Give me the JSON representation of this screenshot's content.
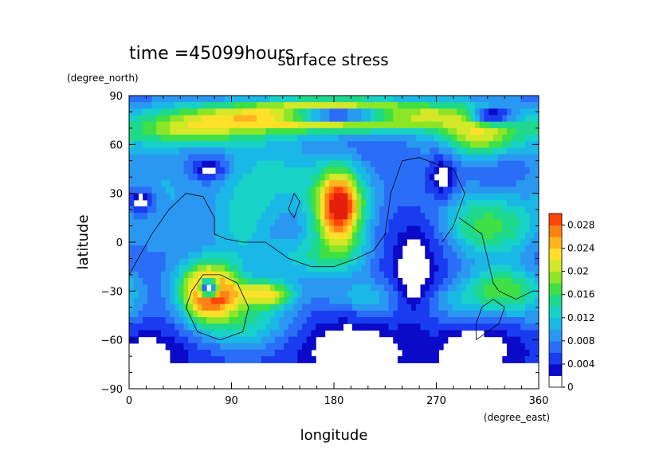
{
  "chart_data": {
    "type": "heatmap",
    "title": "surface stress",
    "time_label": "time =45099hours",
    "xlabel": "longitude",
    "ylabel": "latitude",
    "x_units": "(degree_east)",
    "y_units": "(degree_north)",
    "xlim": [
      0,
      360
    ],
    "ylim": [
      -90,
      90
    ],
    "x_ticks": [
      "0",
      "90",
      "180",
      "270",
      "360"
    ],
    "y_ticks": [
      "90",
      "60",
      "30",
      "0",
      "−30",
      "−60",
      "−90"
    ],
    "colorbar": {
      "ticks": [
        "0.028",
        "0.024",
        "0.02",
        "0.016",
        "0.012",
        "0.008",
        "0.004",
        "0"
      ],
      "range": [
        0,
        0.03
      ],
      "levels": 15
    },
    "blobs": [
      {
        "lon": 180,
        "lat": 78,
        "sx": 90,
        "sy": 7,
        "amp": 0.025
      },
      {
        "lon": 310,
        "lat": 65,
        "sx": 25,
        "sy": 10,
        "amp": 0.016
      },
      {
        "lon": 185,
        "lat": 22,
        "sx": 14,
        "sy": 16,
        "amp": 0.024
      },
      {
        "lon": 70,
        "lat": -30,
        "sx": 18,
        "sy": 12,
        "amp": 0.027
      },
      {
        "lon": 120,
        "lat": -32,
        "sx": 18,
        "sy": 6,
        "amp": 0.016
      },
      {
        "lon": 50,
        "lat": 68,
        "sx": 40,
        "sy": 7,
        "amp": 0.012
      },
      {
        "lon": 100,
        "lat": 10,
        "sx": 20,
        "sy": 18,
        "amp": 0.008
      },
      {
        "lon": 150,
        "lat": 40,
        "sx": 40,
        "sy": 20,
        "amp": 0.007
      },
      {
        "lon": 30,
        "lat": 40,
        "sx": 30,
        "sy": 20,
        "amp": 0.006
      },
      {
        "lon": 330,
        "lat": -30,
        "sx": 25,
        "sy": 10,
        "amp": 0.012
      },
      {
        "lon": 230,
        "lat": -35,
        "sx": 40,
        "sy": 8,
        "amp": 0.01
      },
      {
        "lon": 280,
        "lat": 15,
        "sx": 50,
        "sy": 20,
        "amp": 0.006
      },
      {
        "lon": 320,
        "lat": 10,
        "sx": 30,
        "sy": 12,
        "amp": 0.006
      },
      {
        "lon": 100,
        "lat": -50,
        "sx": 40,
        "sy": 10,
        "amp": 0.007
      },
      {
        "lon": 280,
        "lat": -45,
        "sx": 60,
        "sy": 10,
        "amp": 0.006
      },
      {
        "lon": 160,
        "lat": -10,
        "sx": 40,
        "sy": 10,
        "amp": 0.007
      }
    ],
    "background_amp": 0.005,
    "empty_areas": [
      {
        "lon": 185,
        "lat": 78,
        "sx": 35,
        "sy": 3
      },
      {
        "lon": 320,
        "lat": 78,
        "sx": 15,
        "sy": 4
      },
      {
        "lon": 250,
        "lat": -20,
        "sx": 20,
        "sy": 35
      },
      {
        "lon": 10,
        "lat": -70,
        "sx": 25,
        "sy": 12
      },
      {
        "lon": 200,
        "lat": -65,
        "sx": 40,
        "sy": 18
      },
      {
        "lon": 300,
        "lat": -65,
        "sx": 30,
        "sy": 15
      },
      {
        "lon": 70,
        "lat": -28,
        "sx": 6,
        "sy": 4
      },
      {
        "lon": 10,
        "lat": 25,
        "sx": 10,
        "sy": 6
      },
      {
        "lon": 70,
        "lat": 45,
        "sx": 10,
        "sy": 5
      },
      {
        "lon": 275,
        "lat": 40,
        "sx": 10,
        "sy": 10
      }
    ],
    "coastlines": [
      [
        [
          0,
          -20
        ],
        [
          20,
          5
        ],
        [
          35,
          20
        ],
        [
          50,
          30
        ],
        [
          65,
          28
        ],
        [
          75,
          15
        ],
        [
          75,
          5
        ],
        [
          85,
          2
        ],
        [
          100,
          0
        ],
        [
          120,
          0
        ],
        [
          140,
          -10
        ],
        [
          160,
          -15
        ],
        [
          180,
          -15
        ],
        [
          200,
          -10
        ],
        [
          215,
          -5
        ],
        [
          225,
          5
        ],
        [
          230,
          30
        ],
        [
          240,
          50
        ],
        [
          255,
          52
        ],
        [
          270,
          48
        ],
        [
          285,
          45
        ],
        [
          295,
          30
        ],
        [
          285,
          10
        ],
        [
          275,
          0
        ]
      ],
      [
        [
          290,
          15
        ],
        [
          300,
          10
        ],
        [
          310,
          5
        ],
        [
          315,
          -10
        ],
        [
          320,
          -25
        ],
        [
          325,
          -30
        ],
        [
          340,
          -35
        ],
        [
          355,
          -30
        ]
      ],
      [
        [
          50,
          -40
        ],
        [
          60,
          -55
        ],
        [
          80,
          -60
        ],
        [
          100,
          -55
        ],
        [
          105,
          -40
        ],
        [
          95,
          -25
        ],
        [
          80,
          -20
        ],
        [
          65,
          -20
        ],
        [
          55,
          -30
        ],
        [
          50,
          -40
        ]
      ],
      [
        [
          305,
          -60
        ],
        [
          315,
          -55
        ],
        [
          325,
          -50
        ],
        [
          330,
          -40
        ],
        [
          320,
          -35
        ],
        [
          310,
          -40
        ],
        [
          305,
          -50
        ],
        [
          305,
          -60
        ]
      ],
      [
        [
          140,
          20
        ],
        [
          145,
          30
        ],
        [
          150,
          25
        ],
        [
          145,
          15
        ],
        [
          140,
          20
        ]
      ]
    ]
  }
}
